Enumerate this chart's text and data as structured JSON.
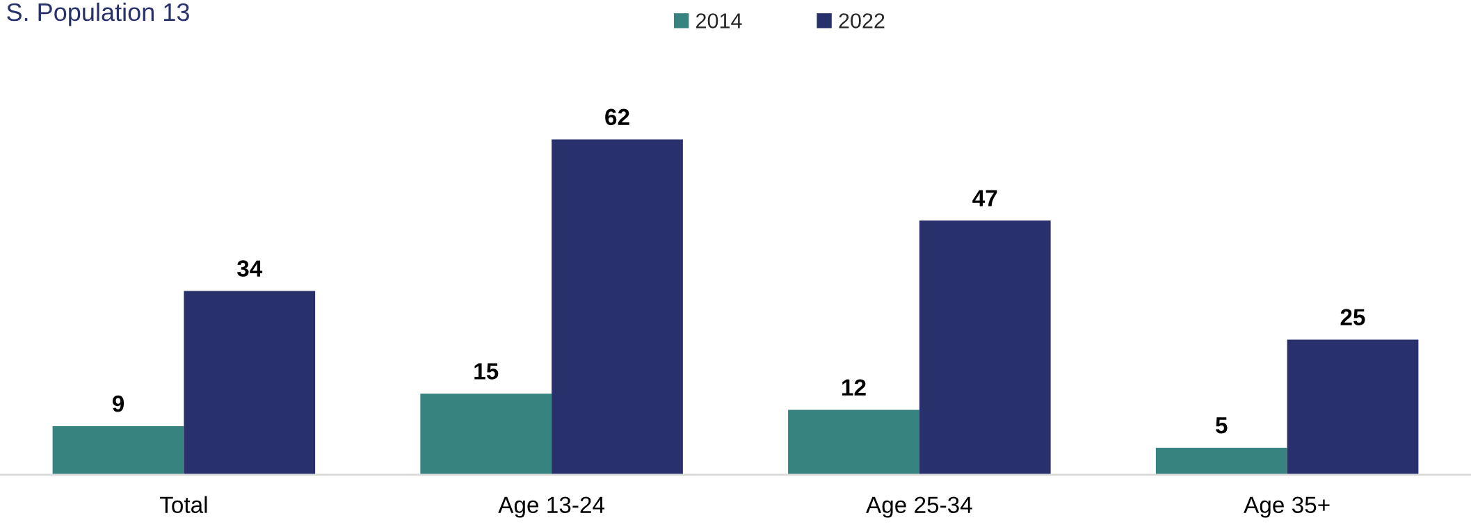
{
  "chart_data": {
    "type": "bar",
    "title": "S. Population 13",
    "categories": [
      "Total",
      "Age 13-24",
      "Age 25-34",
      "Age 35+"
    ],
    "series": [
      {
        "name": "2014",
        "color": "#36837f",
        "values": [
          9,
          15,
          12,
          5
        ]
      },
      {
        "name": "2022",
        "color": "#28316c",
        "values": [
          34,
          62,
          47,
          25
        ]
      }
    ],
    "data_labels": true,
    "legend": "top",
    "tick_labels": "x"
  }
}
